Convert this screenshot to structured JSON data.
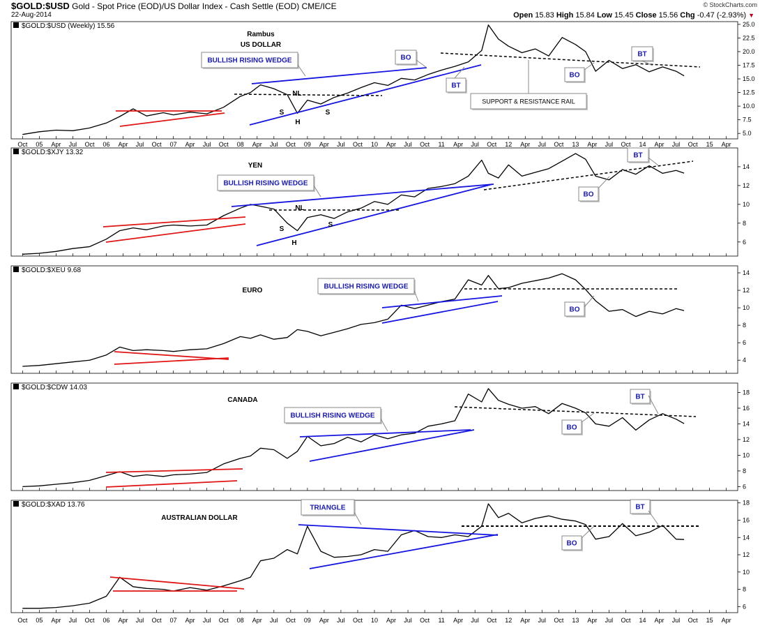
{
  "header": {
    "symbol": "$GOLD:$USD",
    "description": "Gold - Spot Price (EOD)/US Dollar Index - Cash Settle (EOD)",
    "exchange": "CME/ICE",
    "date": "22-Aug-2014",
    "copyright": "© StockCharts.com",
    "ohlc": {
      "open_label": "Open",
      "open": "15.83",
      "high_label": "High",
      "high": "15.84",
      "low_label": "Low",
      "low": "15.45",
      "close_label": "Close",
      "close": "15.56",
      "chg_label": "Chg",
      "chg": "-0.47 (-2.93%)"
    }
  },
  "annotation_author": "Rambus",
  "chart_data": [
    {
      "type": "line",
      "ticker_label": "$GOLD:$USD (Weekly) 15.56",
      "title": "US DOLLAR",
      "ylim": [
        4,
        25.5
      ],
      "yticks": [
        "25.0",
        "22.5",
        "20.0",
        "17.5",
        "15.0",
        "12.5",
        "10.0",
        "7.5",
        "5.0"
      ],
      "x": [
        2004.75,
        2005.0,
        2005.25,
        2005.5,
        2005.75,
        2006.0,
        2006.2,
        2006.4,
        2006.6,
        2006.85,
        2007.0,
        2007.25,
        2007.5,
        2007.75,
        2008.0,
        2008.15,
        2008.3,
        2008.5,
        2008.7,
        2008.85,
        2009.0,
        2009.2,
        2009.4,
        2009.6,
        2009.8,
        2010.0,
        2010.2,
        2010.4,
        2010.6,
        2010.8,
        2011.0,
        2011.2,
        2011.4,
        2011.6,
        2011.7,
        2011.85,
        2012.0,
        2012.2,
        2012.4,
        2012.6,
        2012.8,
        2013.0,
        2013.15,
        2013.3,
        2013.5,
        2013.7,
        2013.9,
        2014.1,
        2014.3,
        2014.5,
        2014.62
      ],
      "y": [
        4.8,
        5.3,
        5.6,
        5.5,
        6.0,
        6.9,
        8.1,
        9.5,
        8.2,
        8.8,
        8.4,
        8.9,
        8.6,
        9.8,
        11.8,
        12.5,
        13.9,
        13.2,
        12.1,
        8.7,
        11.1,
        10.4,
        11.6,
        12.4,
        13.4,
        14.3,
        13.8,
        15.1,
        14.8,
        15.8,
        16.6,
        17.3,
        18.1,
        20.2,
        24.9,
        22.3,
        21.0,
        19.8,
        20.5,
        19.2,
        22.6,
        21.3,
        20.0,
        16.4,
        18.4,
        16.9,
        17.6,
        16.3,
        17.2,
        16.4,
        15.56
      ],
      "patterns": {
        "bullish_rising_wedge": "BULLISH RISING WEDGE",
        "bo": "BO",
        "bt": "BT",
        "support_resistance": "SUPPORT & RESISTANCE RAIL",
        "nl": "NL",
        "s1": "S",
        "h": "H",
        "s2": "S"
      }
    },
    {
      "type": "line",
      "ticker_label": "$GOLD:$XJY 13.32",
      "title": "YEN",
      "ylim": [
        4.5,
        16
      ],
      "yticks": [
        "14",
        "12",
        "10",
        "8",
        "6"
      ],
      "x": [
        2004.75,
        2005.0,
        2005.25,
        2005.5,
        2005.75,
        2006.0,
        2006.2,
        2006.4,
        2006.6,
        2006.85,
        2007.0,
        2007.25,
        2007.5,
        2007.75,
        2008.0,
        2008.15,
        2008.3,
        2008.5,
        2008.7,
        2008.85,
        2009.0,
        2009.2,
        2009.4,
        2009.6,
        2009.8,
        2010.0,
        2010.2,
        2010.4,
        2010.6,
        2010.8,
        2011.0,
        2011.2,
        2011.4,
        2011.6,
        2011.7,
        2011.85,
        2012.0,
        2012.2,
        2012.4,
        2012.6,
        2012.8,
        2013.0,
        2013.15,
        2013.3,
        2013.5,
        2013.7,
        2013.9,
        2014.1,
        2014.3,
        2014.5,
        2014.62
      ],
      "y": [
        4.7,
        4.8,
        5.0,
        5.3,
        5.5,
        6.3,
        7.2,
        7.5,
        7.3,
        7.7,
        7.8,
        7.7,
        7.8,
        8.8,
        9.6,
        10.0,
        9.8,
        9.5,
        8.0,
        7.2,
        8.6,
        8.9,
        8.5,
        9.2,
        9.6,
        10.3,
        10.0,
        11.0,
        10.8,
        11.7,
        11.9,
        12.2,
        13.0,
        14.7,
        13.3,
        12.8,
        14.2,
        13.0,
        13.4,
        13.8,
        14.6,
        15.4,
        14.8,
        13.0,
        12.6,
        13.7,
        13.2,
        14.1,
        13.3,
        13.6,
        13.32
      ],
      "patterns": {
        "bullish_rising_wedge": "BULLISH RISING WEDGE",
        "bo": "BO",
        "bt": "BT",
        "nl": "NL",
        "s1": "S",
        "h": "H",
        "s2": "S"
      }
    },
    {
      "type": "line",
      "ticker_label": "$GOLD:$XEU 9.68",
      "title": "EURO",
      "ylim": [
        2.5,
        14.8
      ],
      "yticks": [
        "14",
        "12",
        "10",
        "8",
        "6",
        "4"
      ],
      "x": [
        2004.75,
        2005.0,
        2005.25,
        2005.5,
        2005.75,
        2006.0,
        2006.2,
        2006.4,
        2006.6,
        2006.85,
        2007.0,
        2007.25,
        2007.5,
        2007.75,
        2008.0,
        2008.15,
        2008.3,
        2008.5,
        2008.7,
        2008.85,
        2009.0,
        2009.2,
        2009.4,
        2009.6,
        2009.8,
        2010.0,
        2010.2,
        2010.4,
        2010.6,
        2010.8,
        2011.0,
        2011.2,
        2011.4,
        2011.6,
        2011.7,
        2011.85,
        2012.0,
        2012.2,
        2012.4,
        2012.6,
        2012.8,
        2013.0,
        2013.15,
        2013.3,
        2013.5,
        2013.7,
        2013.9,
        2014.1,
        2014.3,
        2014.5,
        2014.62
      ],
      "y": [
        3.3,
        3.4,
        3.6,
        3.8,
        4.0,
        4.6,
        5.5,
        5.1,
        5.2,
        5.1,
        5.0,
        5.2,
        5.3,
        5.9,
        6.7,
        6.5,
        6.9,
        6.4,
        6.6,
        7.5,
        7.3,
        6.8,
        7.2,
        7.6,
        8.1,
        8.3,
        8.7,
        10.3,
        9.9,
        10.3,
        10.7,
        11.0,
        13.2,
        12.6,
        13.7,
        12.2,
        12.3,
        12.8,
        13.1,
        13.4,
        13.9,
        13.2,
        12.1,
        10.8,
        9.6,
        9.8,
        9.0,
        9.6,
        9.3,
        9.9,
        9.68
      ],
      "patterns": {
        "bullish_rising_wedge": "BULLISH RISING WEDGE",
        "bo": "BO"
      }
    },
    {
      "type": "line",
      "ticker_label": "$GOLD:$CDW 14.03",
      "title": "CANADA",
      "ylim": [
        5.5,
        19.2
      ],
      "yticks": [
        "18",
        "16",
        "14",
        "12",
        "10",
        "8",
        "6"
      ],
      "x": [
        2004.75,
        2005.0,
        2005.25,
        2005.5,
        2005.75,
        2006.0,
        2006.2,
        2006.4,
        2006.6,
        2006.85,
        2007.0,
        2007.25,
        2007.5,
        2007.75,
        2008.0,
        2008.15,
        2008.3,
        2008.5,
        2008.7,
        2008.85,
        2009.0,
        2009.2,
        2009.4,
        2009.6,
        2009.8,
        2010.0,
        2010.2,
        2010.4,
        2010.6,
        2010.8,
        2011.0,
        2011.2,
        2011.4,
        2011.6,
        2011.7,
        2011.85,
        2012.0,
        2012.2,
        2012.4,
        2012.6,
        2012.8,
        2013.0,
        2013.15,
        2013.3,
        2013.5,
        2013.7,
        2013.9,
        2014.1,
        2014.3,
        2014.5,
        2014.62
      ],
      "y": [
        6.0,
        6.1,
        6.3,
        6.5,
        6.8,
        7.4,
        7.9,
        7.3,
        7.5,
        7.3,
        7.5,
        7.6,
        7.8,
        8.9,
        9.6,
        9.9,
        10.9,
        10.7,
        9.6,
        10.5,
        12.4,
        11.2,
        11.5,
        12.3,
        11.7,
        12.6,
        12.1,
        12.6,
        12.8,
        13.7,
        14.0,
        14.4,
        17.8,
        16.8,
        18.5,
        17.0,
        16.5,
        16.0,
        16.2,
        15.3,
        16.6,
        16.0,
        15.4,
        14.0,
        13.7,
        14.8,
        13.2,
        14.5,
        15.3,
        14.6,
        14.03
      ],
      "patterns": {
        "bullish_rising_wedge": "BULLISH RISING WEDGE",
        "bo": "BO",
        "bt": "BT"
      }
    },
    {
      "type": "line",
      "ticker_label": "$GOLD:$XAD 13.76",
      "title": "AUSTRALIAN DOLLAR",
      "ylim": [
        5.3,
        18.3
      ],
      "yticks": [
        "18",
        "16",
        "14",
        "12",
        "10",
        "8",
        "6"
      ],
      "x": [
        2004.75,
        2005.0,
        2005.25,
        2005.5,
        2005.75,
        2006.0,
        2006.2,
        2006.4,
        2006.6,
        2006.85,
        2007.0,
        2007.25,
        2007.5,
        2007.75,
        2008.0,
        2008.15,
        2008.3,
        2008.5,
        2008.7,
        2008.85,
        2009.0,
        2009.2,
        2009.4,
        2009.6,
        2009.8,
        2010.0,
        2010.2,
        2010.4,
        2010.6,
        2010.8,
        2011.0,
        2011.2,
        2011.4,
        2011.6,
        2011.7,
        2011.85,
        2012.0,
        2012.2,
        2012.4,
        2012.6,
        2012.8,
        2013.0,
        2013.15,
        2013.3,
        2013.5,
        2013.7,
        2013.9,
        2014.1,
        2014.3,
        2014.5,
        2014.62
      ],
      "y": [
        5.8,
        5.8,
        5.9,
        6.1,
        6.4,
        7.2,
        9.4,
        8.3,
        8.1,
        8.0,
        7.8,
        8.2,
        7.9,
        8.4,
        9.0,
        9.4,
        11.3,
        11.6,
        12.6,
        12.1,
        15.3,
        12.4,
        11.7,
        11.8,
        12.0,
        12.6,
        12.4,
        14.3,
        14.8,
        14.1,
        14.0,
        14.3,
        14.1,
        15.3,
        17.9,
        16.3,
        16.8,
        15.7,
        16.2,
        16.5,
        16.1,
        15.9,
        15.5,
        13.8,
        14.1,
        15.6,
        14.2,
        14.6,
        15.4,
        13.8,
        13.76
      ],
      "patterns": {
        "triangle": "TRIANGLE",
        "bo": "BO",
        "bt": "BT"
      }
    }
  ],
  "x_axis_ticks": [
    "Oct",
    "05",
    "Apr",
    "Jul",
    "Oct",
    "06",
    "Apr",
    "Jul",
    "Oct",
    "07",
    "Apr",
    "Jul",
    "Oct",
    "08",
    "Apr",
    "Jul",
    "Oct",
    "09",
    "Apr",
    "Jul",
    "Oct",
    "10",
    "Apr",
    "Jul",
    "Oct",
    "11",
    "Apr",
    "Jul",
    "Oct",
    "12",
    "Apr",
    "Jul",
    "Oct",
    "13",
    "Apr",
    "Jul",
    "Oct",
    "14",
    "Apr",
    "Jul",
    "Oct",
    "15",
    "Apr"
  ]
}
